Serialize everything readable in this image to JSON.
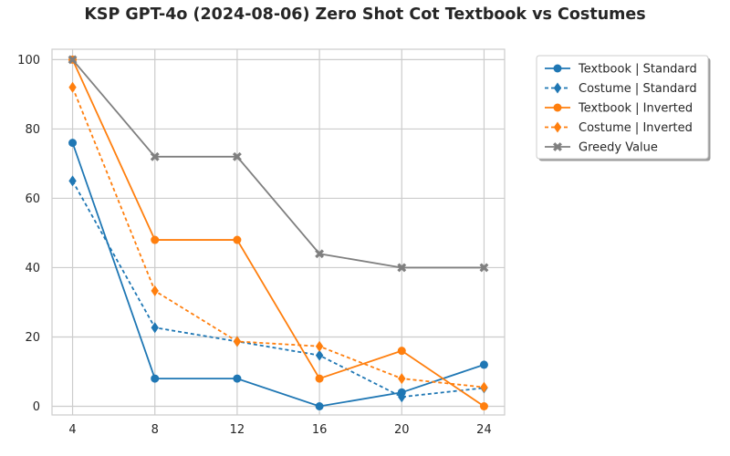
{
  "chart_data": {
    "type": "line",
    "title": "KSP GPT-4o (2024-08-06) Zero Shot Cot Textbook vs Costumes",
    "xlabel": "",
    "ylabel": "",
    "x": [
      4,
      8,
      12,
      16,
      20,
      24
    ],
    "xticks": [
      "4",
      "8",
      "12",
      "16",
      "20",
      "24"
    ],
    "yticks": [
      "0",
      "20",
      "40",
      "60",
      "80",
      "100"
    ],
    "xlim": [
      3,
      25
    ],
    "ylim": [
      -2.5,
      103
    ],
    "grid": true,
    "legend_position": "outside-top-right",
    "series": [
      {
        "name": "Textbook | Standard",
        "values": [
          76,
          8,
          8,
          0,
          4,
          12
        ],
        "color": "#1f77b4",
        "linestyle": "solid",
        "marker": "circle"
      },
      {
        "name": "Costume | Standard",
        "values": [
          65,
          22.7,
          18.7,
          14.7,
          2.7,
          5.3
        ],
        "color": "#1f77b4",
        "linestyle": "dashed",
        "marker": "diamond"
      },
      {
        "name": "Textbook | Inverted",
        "values": [
          100,
          48,
          48,
          8,
          16,
          0
        ],
        "color": "#ff7f0e",
        "linestyle": "solid",
        "marker": "circle"
      },
      {
        "name": "Costume | Inverted",
        "values": [
          92,
          33.3,
          18.7,
          17.3,
          8,
          5.5
        ],
        "color": "#ff7f0e",
        "linestyle": "dashed",
        "marker": "diamond"
      },
      {
        "name": "Greedy Value",
        "values": [
          100,
          72,
          72,
          44,
          40,
          40
        ],
        "color": "#7f7f7f",
        "linestyle": "solid",
        "marker": "x"
      }
    ]
  }
}
